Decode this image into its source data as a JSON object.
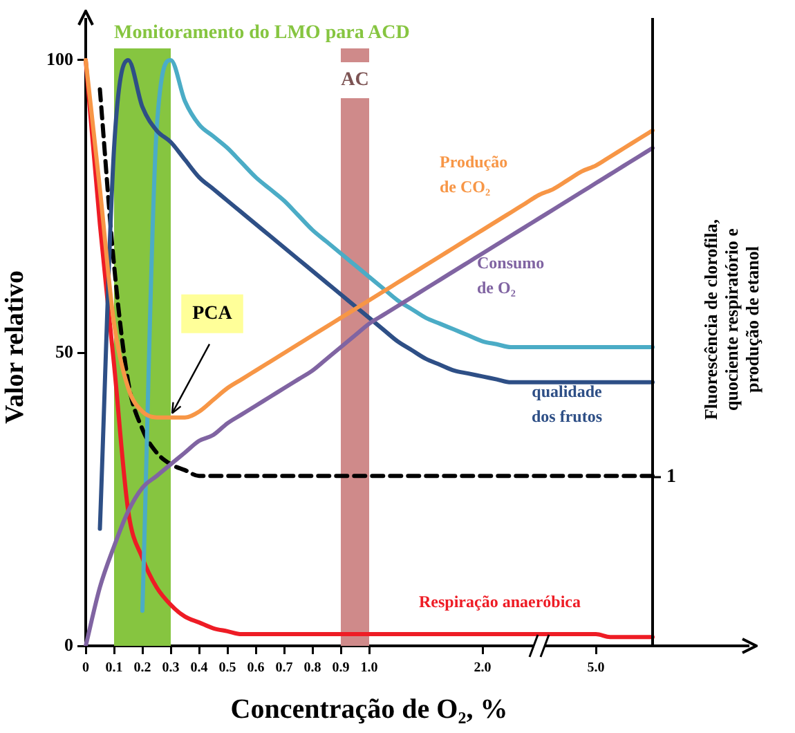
{
  "chart_data": {
    "type": "line",
    "xlabel": "Concentração de O₂, %",
    "ylabel": "Valor relativo",
    "y2label": "Fluorescência de clorofila, quociente respiratório e produção de etanol",
    "categories": [
      "0",
      null,
      "0.1",
      null,
      "0.2",
      null,
      "0.3",
      null,
      "0.4",
      null,
      "0.5",
      null,
      "0.6",
      null,
      "0.7",
      null,
      "0.8",
      null,
      "0.9",
      null,
      "1.0",
      null,
      null,
      null,
      null,
      null,
      null,
      null,
      "2.0",
      null,
      null,
      null,
      null,
      null,
      null,
      null,
      "5.0",
      null,
      null,
      null,
      null
    ],
    "ylim": [
      0,
      102
    ],
    "yticks": [
      0,
      50,
      100
    ],
    "legend": false,
    "series": [
      {
        "name": "Produção de CO₂",
        "color": "#f79646",
        "values": [
          100,
          78,
          55,
          44,
          40,
          39,
          39,
          39,
          40,
          42,
          44,
          45.5,
          47,
          48.5,
          50,
          51.5,
          53,
          54.5,
          56,
          57.5,
          59,
          60.5,
          62,
          63.5,
          65,
          66.5,
          68,
          69.5,
          71,
          72.5,
          74,
          75.5,
          77,
          78,
          79.5,
          81,
          82,
          83.5,
          85,
          86.5,
          88
        ]
      },
      {
        "name": "Consumo de O₂",
        "color": "#8064a2",
        "values": [
          0,
          10,
          17,
          23,
          27,
          29,
          31,
          33,
          35,
          36,
          38,
          39.5,
          41,
          42.5,
          44,
          45.5,
          47,
          49,
          51,
          53,
          55,
          56.5,
          58,
          59.5,
          61,
          62.5,
          64,
          65.5,
          67,
          68.5,
          70,
          71.5,
          73,
          74.5,
          76,
          77.5,
          79,
          80.5,
          82,
          83.5,
          85
        ]
      },
      {
        "name": "qualidade dos frutos",
        "color": "#2e4f86",
        "values": [
          null,
          20,
          85,
          100,
          92,
          88,
          86,
          83,
          80,
          78,
          76,
          74,
          72,
          70,
          68,
          66,
          64,
          62,
          60,
          58,
          56,
          54,
          52,
          50.5,
          49,
          48,
          47,
          46.5,
          46,
          45.5,
          45,
          45,
          45,
          45,
          45,
          45,
          45,
          45,
          45,
          45,
          45
        ]
      },
      {
        "color": "#4bacc6",
        "values": [
          null,
          null,
          null,
          null,
          6,
          88,
          100,
          93,
          89,
          87,
          85,
          82.5,
          80,
          78,
          76,
          73.5,
          71,
          69,
          67,
          65,
          63,
          61,
          59,
          57.5,
          56,
          55,
          54,
          53,
          52,
          51.5,
          51,
          51,
          51,
          51,
          51,
          51,
          51,
          51,
          51,
          51,
          51
        ]
      },
      {
        "color": "#000000",
        "line_style": "dashed",
        "values": [
          null,
          95,
          65,
          45,
          37,
          33,
          31,
          30,
          29,
          29,
          29,
          29,
          29,
          29,
          29,
          29,
          29,
          29,
          29,
          29,
          29,
          29,
          29,
          29,
          29,
          29,
          29,
          29,
          29,
          29,
          29,
          29,
          29,
          29,
          29,
          29,
          29,
          29,
          29,
          29,
          29
        ]
      },
      {
        "name": "Respiração anaeróbica",
        "color": "#ee1c25",
        "values": [
          100,
          72,
          48,
          23,
          15,
          10,
          7,
          5,
          4,
          3,
          2.5,
          2,
          2,
          2,
          2,
          2,
          2,
          2,
          2,
          2,
          2,
          2,
          2,
          2,
          2,
          2,
          2,
          2,
          2,
          2,
          2,
          2,
          2,
          2,
          2,
          2,
          2,
          1.5,
          1.5,
          1.5,
          1.5
        ]
      }
    ],
    "bands": [
      {
        "axis": "x",
        "from": "0.1",
        "to": "0.3",
        "label": "Monitoramento do LMO para ACD",
        "color": "#86c540"
      },
      {
        "axis": "x",
        "from": "0.9",
        "to": "1.0",
        "label": "AC",
        "color": "#cf8a8a"
      }
    ],
    "annotations": [
      {
        "text": "PCA",
        "x": "0.3",
        "y": 39
      },
      "1"
    ]
  }
}
